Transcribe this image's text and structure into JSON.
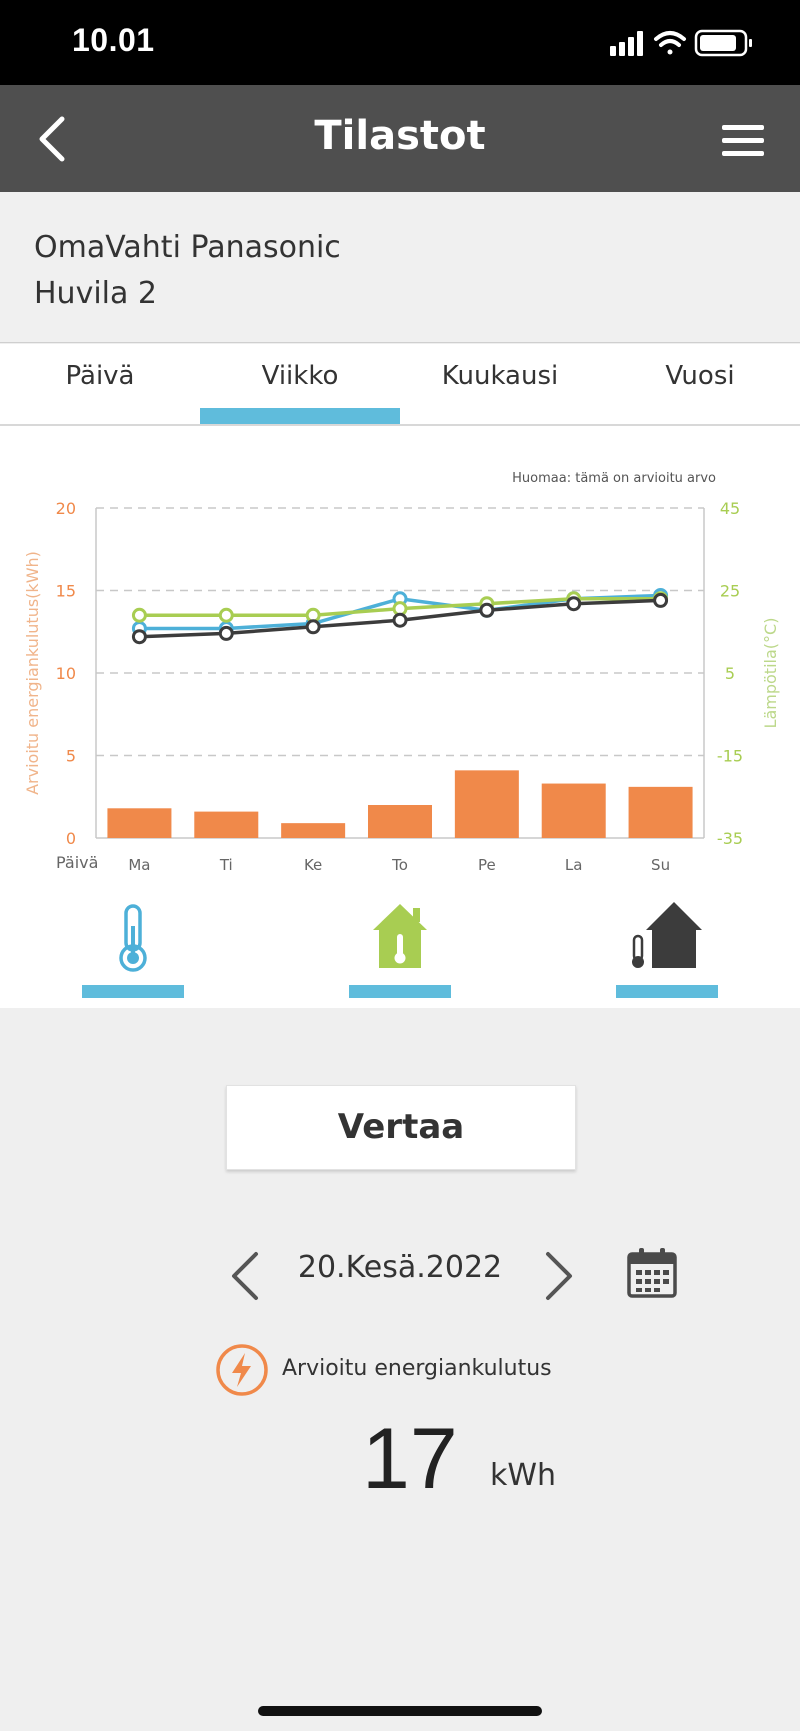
{
  "status_bar": {
    "time": "10.01"
  },
  "header": {
    "title": "Tilastot"
  },
  "device": {
    "line1": "OmaVahti Panasonic",
    "line2": "Huvila 2"
  },
  "tabs": [
    {
      "label": "Päivä",
      "active": false
    },
    {
      "label": "Viikko",
      "active": true
    },
    {
      "label": "Kuukausi",
      "active": false
    },
    {
      "label": "Vuosi",
      "active": false
    }
  ],
  "chart_data": {
    "type": "bar",
    "note": "Huomaa: tämä on arvioitu arvo",
    "xlabel": "Päivä",
    "ylabel": "Arvioitu energiankulutus(kWh)",
    "y2label": "Lämpötila(°C)",
    "ylim": [
      0,
      20
    ],
    "y2lim": [
      -35,
      45
    ],
    "yticks": [
      0,
      5,
      10,
      15,
      20
    ],
    "y2ticks": [
      -35,
      -15,
      5,
      25,
      45
    ],
    "categories": [
      "Ma",
      "Ti",
      "Ke",
      "To",
      "Pe",
      "La",
      "Su"
    ],
    "grid": true,
    "bars": {
      "color": "#f0894a",
      "values": [
        1.8,
        1.6,
        0.9,
        2.0,
        4.1,
        3.3,
        3.1
      ]
    },
    "lines": [
      {
        "color": "#4db0d8",
        "values": [
          12.7,
          12.7,
          13.0,
          14.5,
          13.8,
          14.5,
          14.7
        ]
      },
      {
        "color": "#a8cd52",
        "values": [
          13.5,
          13.5,
          13.5,
          13.9,
          14.2,
          14.5,
          14.5
        ]
      },
      {
        "color": "#3c3c3c",
        "values": [
          12.2,
          12.4,
          12.8,
          13.2,
          13.8,
          14.2,
          14.4
        ]
      }
    ]
  },
  "toggles": [
    {
      "icon": "thermometer-icon",
      "color": "#4db0d8"
    },
    {
      "icon": "house-thermometer-icon",
      "color": "#a8cd52"
    },
    {
      "icon": "outdoor-house-icon",
      "color": "#3c3c3c"
    }
  ],
  "compare_button": {
    "label": "Vertaa"
  },
  "date_nav": {
    "date": "20.Kesä.2022"
  },
  "energy": {
    "label": "Arvioitu energiankulutus",
    "value": "17",
    "unit": "kWh",
    "icon_color": "#f0894a"
  }
}
